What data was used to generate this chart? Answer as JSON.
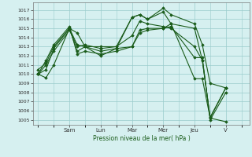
{
  "xlabel": "Pression niveau de la mer( hPa )",
  "bg_color": "#d6f0f0",
  "grid_color": "#99cccc",
  "line_color": "#1a5c1a",
  "ylim": [
    1004.5,
    1017.8
  ],
  "yticks": [
    1005,
    1006,
    1007,
    1008,
    1009,
    1010,
    1011,
    1012,
    1013,
    1014,
    1015,
    1016,
    1017
  ],
  "day_labels": [
    "Sam",
    "Lun",
    "Mar",
    "Mer",
    "Jeu",
    "V"
  ],
  "day_positions": [
    2,
    4,
    6,
    8,
    10,
    12
  ],
  "xlim": [
    -0.3,
    13.5
  ],
  "lines": [
    {
      "x": [
        0,
        0.5,
        1,
        2,
        2.5,
        3,
        4,
        5,
        6,
        6.5,
        7,
        8,
        8.5,
        10,
        10.5,
        11,
        12
      ],
      "y": [
        1010.0,
        1009.6,
        1011.0,
        1015.0,
        1014.5,
        1013.0,
        1013.0,
        1013.0,
        1016.2,
        1016.5,
        1016.0,
        1017.2,
        1016.5,
        1015.5,
        1013.2,
        1009.0,
        1008.5
      ]
    },
    {
      "x": [
        0,
        0.5,
        1,
        2,
        2.5,
        3,
        4,
        5,
        6,
        6.5,
        7,
        8,
        8.5,
        10,
        10.5,
        11,
        12
      ],
      "y": [
        1010.0,
        1010.5,
        1012.8,
        1015.0,
        1013.2,
        1013.0,
        1012.5,
        1012.8,
        1016.2,
        1016.5,
        1016.0,
        1016.8,
        1015.5,
        1015.0,
        1011.5,
        1005.2,
        1004.8
      ]
    },
    {
      "x": [
        0,
        0.5,
        1,
        2,
        2.5,
        3,
        4,
        5,
        6,
        6.5,
        7,
        8,
        8.5,
        10,
        10.5,
        11,
        12
      ],
      "y": [
        1010.0,
        1011.0,
        1012.5,
        1014.8,
        1013.0,
        1013.2,
        1012.8,
        1013.0,
        1014.2,
        1015.8,
        1015.5,
        1015.2,
        1015.0,
        1013.0,
        1011.5,
        1005.3,
        1008.5
      ]
    },
    {
      "x": [
        0,
        0.5,
        1,
        2,
        2.5,
        3,
        4,
        5,
        6,
        6.5,
        7,
        8,
        8.5,
        10,
        10.5,
        11,
        12
      ],
      "y": [
        1010.0,
        1011.5,
        1013.2,
        1015.2,
        1012.2,
        1012.5,
        1012.2,
        1012.5,
        1013.0,
        1014.5,
        1014.8,
        1015.0,
        1015.2,
        1011.8,
        1011.8,
        1005.0,
        1008.0
      ]
    },
    {
      "x": [
        0,
        0.5,
        1,
        2,
        2.5,
        3,
        4,
        5,
        6,
        6.5,
        7,
        8,
        8.5,
        10,
        10.5,
        11,
        12
      ],
      "y": [
        1010.5,
        1011.2,
        1013.0,
        1015.0,
        1012.5,
        1013.0,
        1012.0,
        1012.8,
        1013.0,
        1014.8,
        1015.0,
        1015.0,
        1015.5,
        1009.5,
        1009.5,
        1005.2,
        1008.5
      ]
    }
  ]
}
